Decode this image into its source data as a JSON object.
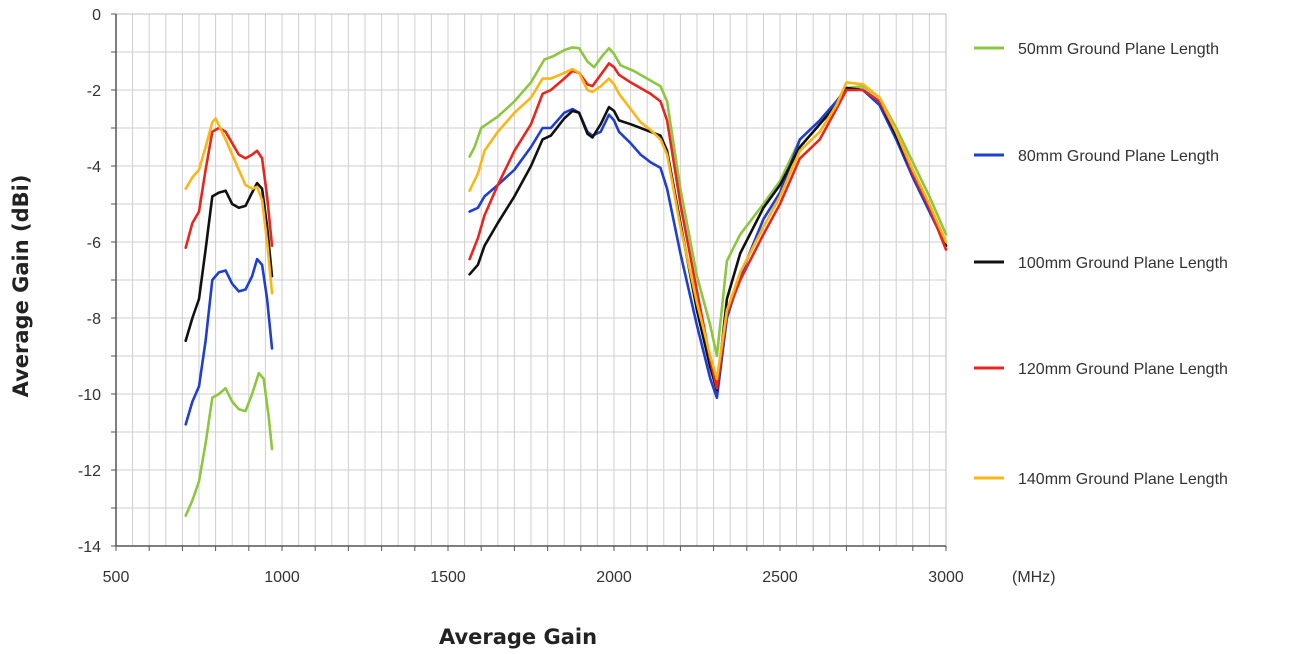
{
  "chart_data": {
    "type": "line",
    "title": "",
    "xlabel": "Average Gain",
    "ylabel": "Average Gain (dBi)",
    "x_unit": "(MHz)",
    "xlim": [
      500,
      3000
    ],
    "ylim": [
      -14,
      0
    ],
    "x_ticks": [
      "500",
      "1000",
      "1500",
      "2000",
      "2500",
      "3000"
    ],
    "y_ticks": [
      "0",
      "-2",
      "-4",
      "-6",
      "-8",
      "-10",
      "-12",
      "-14"
    ],
    "grid": true,
    "legend_position": "right",
    "series": [
      {
        "name": "50mm Ground Plane Length",
        "color": "#8dc63f",
        "segments": [
          [
            [
              710,
              -13.2
            ],
            [
              730,
              -12.8
            ],
            [
              750,
              -12.3
            ],
            [
              770,
              -11.3
            ],
            [
              790,
              -10.1
            ],
            [
              810,
              -10.0
            ],
            [
              830,
              -9.85
            ],
            [
              850,
              -10.2
            ],
            [
              870,
              -10.4
            ],
            [
              890,
              -10.45
            ],
            [
              910,
              -10.0
            ],
            [
              930,
              -9.45
            ],
            [
              945,
              -9.6
            ],
            [
              960,
              -10.6
            ],
            [
              970,
              -11.45
            ]
          ],
          [
            [
              1565,
              -3.75
            ],
            [
              1580,
              -3.5
            ],
            [
              1600,
              -3.0
            ],
            [
              1650,
              -2.7
            ],
            [
              1700,
              -2.3
            ],
            [
              1750,
              -1.8
            ],
            [
              1790,
              -1.2
            ],
            [
              1820,
              -1.1
            ],
            [
              1850,
              -0.95
            ],
            [
              1875,
              -0.88
            ],
            [
              1895,
              -0.9
            ],
            [
              1920,
              -1.25
            ],
            [
              1940,
              -1.4
            ],
            [
              1965,
              -1.1
            ],
            [
              1985,
              -0.9
            ],
            [
              2000,
              -1.05
            ],
            [
              2020,
              -1.35
            ],
            [
              2060,
              -1.5
            ],
            [
              2100,
              -1.7
            ],
            [
              2140,
              -1.9
            ],
            [
              2160,
              -2.3
            ],
            [
              2200,
              -4.6
            ],
            [
              2250,
              -6.9
            ],
            [
              2290,
              -8.2
            ],
            [
              2310,
              -9.0
            ],
            [
              2340,
              -6.5
            ],
            [
              2380,
              -5.8
            ],
            [
              2450,
              -5.0
            ],
            [
              2500,
              -4.4
            ],
            [
              2560,
              -3.3
            ],
            [
              2620,
              -2.8
            ],
            [
              2670,
              -2.3
            ],
            [
              2700,
              -1.95
            ],
            [
              2750,
              -1.9
            ],
            [
              2800,
              -2.2
            ],
            [
              2850,
              -3.0
            ],
            [
              2900,
              -3.9
            ],
            [
              2950,
              -4.8
            ],
            [
              3000,
              -5.8
            ]
          ]
        ]
      },
      {
        "name": "80mm Ground Plane Length",
        "color": "#1f3fd0",
        "segments": [
          [
            [
              710,
              -10.8
            ],
            [
              730,
              -10.2
            ],
            [
              750,
              -9.8
            ],
            [
              770,
              -8.6
            ],
            [
              790,
              -7.0
            ],
            [
              810,
              -6.8
            ],
            [
              830,
              -6.75
            ],
            [
              850,
              -7.1
            ],
            [
              870,
              -7.3
            ],
            [
              890,
              -7.25
            ],
            [
              910,
              -6.9
            ],
            [
              925,
              -6.45
            ],
            [
              940,
              -6.6
            ],
            [
              955,
              -7.5
            ],
            [
              970,
              -8.8
            ]
          ],
          [
            [
              1565,
              -5.2
            ],
            [
              1590,
              -5.1
            ],
            [
              1610,
              -4.8
            ],
            [
              1650,
              -4.5
            ],
            [
              1700,
              -4.1
            ],
            [
              1750,
              -3.5
            ],
            [
              1785,
              -3.0
            ],
            [
              1810,
              -3.0
            ],
            [
              1850,
              -2.6
            ],
            [
              1875,
              -2.5
            ],
            [
              1895,
              -2.6
            ],
            [
              1920,
              -3.1
            ],
            [
              1935,
              -3.2
            ],
            [
              1960,
              -3.1
            ],
            [
              1985,
              -2.65
            ],
            [
              2000,
              -2.8
            ],
            [
              2015,
              -3.1
            ],
            [
              2050,
              -3.4
            ],
            [
              2080,
              -3.7
            ],
            [
              2110,
              -3.9
            ],
            [
              2140,
              -4.05
            ],
            [
              2160,
              -4.6
            ],
            [
              2200,
              -6.3
            ],
            [
              2250,
              -8.2
            ],
            [
              2290,
              -9.6
            ],
            [
              2310,
              -10.1
            ],
            [
              2340,
              -8.0
            ],
            [
              2380,
              -6.9
            ],
            [
              2450,
              -5.4
            ],
            [
              2500,
              -4.7
            ],
            [
              2560,
              -3.3
            ],
            [
              2620,
              -2.8
            ],
            [
              2670,
              -2.3
            ],
            [
              2700,
              -1.95
            ],
            [
              2750,
              -2.0
            ],
            [
              2800,
              -2.4
            ],
            [
              2850,
              -3.3
            ],
            [
              2900,
              -4.3
            ],
            [
              2950,
              -5.2
            ],
            [
              3000,
              -6.1
            ]
          ]
        ]
      },
      {
        "name": "100mm Ground Plane Length",
        "color": "#111111",
        "segments": [
          [
            [
              710,
              -8.6
            ],
            [
              730,
              -8.0
            ],
            [
              750,
              -7.5
            ],
            [
              770,
              -6.2
            ],
            [
              790,
              -4.8
            ],
            [
              810,
              -4.7
            ],
            [
              830,
              -4.65
            ],
            [
              850,
              -5.0
            ],
            [
              870,
              -5.1
            ],
            [
              890,
              -5.05
            ],
            [
              910,
              -4.7
            ],
            [
              925,
              -4.45
            ],
            [
              940,
              -4.6
            ],
            [
              955,
              -5.6
            ],
            [
              970,
              -6.9
            ]
          ],
          [
            [
              1565,
              -6.85
            ],
            [
              1590,
              -6.6
            ],
            [
              1610,
              -6.1
            ],
            [
              1650,
              -5.5
            ],
            [
              1700,
              -4.8
            ],
            [
              1750,
              -4.0
            ],
            [
              1785,
              -3.3
            ],
            [
              1810,
              -3.2
            ],
            [
              1850,
              -2.75
            ],
            [
              1875,
              -2.55
            ],
            [
              1895,
              -2.6
            ],
            [
              1920,
              -3.15
            ],
            [
              1935,
              -3.25
            ],
            [
              1960,
              -2.9
            ],
            [
              1985,
              -2.45
            ],
            [
              2000,
              -2.55
            ],
            [
              2015,
              -2.8
            ],
            [
              2050,
              -2.9
            ],
            [
              2080,
              -3.0
            ],
            [
              2110,
              -3.1
            ],
            [
              2140,
              -3.2
            ],
            [
              2160,
              -3.6
            ],
            [
              2200,
              -5.5
            ],
            [
              2250,
              -7.8
            ],
            [
              2290,
              -9.3
            ],
            [
              2310,
              -9.9
            ],
            [
              2340,
              -7.5
            ],
            [
              2380,
              -6.3
            ],
            [
              2450,
              -5.1
            ],
            [
              2500,
              -4.5
            ],
            [
              2560,
              -3.5
            ],
            [
              2620,
              -2.9
            ],
            [
              2670,
              -2.4
            ],
            [
              2700,
              -1.95
            ],
            [
              2750,
              -2.0
            ],
            [
              2800,
              -2.3
            ],
            [
              2850,
              -3.2
            ],
            [
              2900,
              -4.2
            ],
            [
              2950,
              -5.1
            ],
            [
              3000,
              -6.1
            ]
          ]
        ]
      },
      {
        "name": "120mm Ground Plane Length",
        "color": "#e8261e",
        "segments": [
          [
            [
              710,
              -6.15
            ],
            [
              730,
              -5.5
            ],
            [
              750,
              -5.2
            ],
            [
              770,
              -4.1
            ],
            [
              790,
              -3.1
            ],
            [
              810,
              -3.0
            ],
            [
              830,
              -3.1
            ],
            [
              850,
              -3.4
            ],
            [
              870,
              -3.7
            ],
            [
              890,
              -3.8
            ],
            [
              910,
              -3.7
            ],
            [
              925,
              -3.6
            ],
            [
              940,
              -3.8
            ],
            [
              955,
              -4.8
            ],
            [
              970,
              -6.1
            ]
          ],
          [
            [
              1565,
              -6.45
            ],
            [
              1590,
              -5.9
            ],
            [
              1610,
              -5.3
            ],
            [
              1650,
              -4.5
            ],
            [
              1700,
              -3.6
            ],
            [
              1750,
              -2.9
            ],
            [
              1785,
              -2.1
            ],
            [
              1810,
              -2.0
            ],
            [
              1850,
              -1.7
            ],
            [
              1875,
              -1.5
            ],
            [
              1895,
              -1.55
            ],
            [
              1920,
              -1.85
            ],
            [
              1935,
              -1.9
            ],
            [
              1960,
              -1.6
            ],
            [
              1985,
              -1.3
            ],
            [
              2000,
              -1.4
            ],
            [
              2015,
              -1.6
            ],
            [
              2050,
              -1.8
            ],
            [
              2080,
              -1.95
            ],
            [
              2110,
              -2.1
            ],
            [
              2140,
              -2.3
            ],
            [
              2160,
              -2.8
            ],
            [
              2200,
              -5.0
            ],
            [
              2250,
              -7.3
            ],
            [
              2290,
              -9.1
            ],
            [
              2310,
              -9.85
            ],
            [
              2340,
              -7.9
            ],
            [
              2380,
              -7.0
            ],
            [
              2450,
              -5.8
            ],
            [
              2500,
              -5.0
            ],
            [
              2560,
              -3.8
            ],
            [
              2620,
              -3.3
            ],
            [
              2670,
              -2.5
            ],
            [
              2700,
              -2.0
            ],
            [
              2750,
              -2.0
            ],
            [
              2800,
              -2.3
            ],
            [
              2850,
              -3.1
            ],
            [
              2900,
              -4.2
            ],
            [
              2950,
              -5.1
            ],
            [
              3000,
              -6.2
            ]
          ]
        ]
      },
      {
        "name": "140mm Ground Plane Length",
        "color": "#fbb615",
        "segments": [
          [
            [
              710,
              -4.6
            ],
            [
              730,
              -4.3
            ],
            [
              750,
              -4.1
            ],
            [
              770,
              -3.5
            ],
            [
              790,
              -2.85
            ],
            [
              800,
              -2.75
            ],
            [
              830,
              -3.3
            ],
            [
              850,
              -3.7
            ],
            [
              870,
              -4.1
            ],
            [
              890,
              -4.5
            ],
            [
              910,
              -4.6
            ],
            [
              925,
              -4.55
            ],
            [
              940,
              -4.9
            ],
            [
              955,
              -6.0
            ],
            [
              970,
              -7.35
            ]
          ],
          [
            [
              1565,
              -4.65
            ],
            [
              1590,
              -4.2
            ],
            [
              1610,
              -3.6
            ],
            [
              1650,
              -3.1
            ],
            [
              1700,
              -2.6
            ],
            [
              1750,
              -2.2
            ],
            [
              1785,
              -1.7
            ],
            [
              1810,
              -1.7
            ],
            [
              1850,
              -1.55
            ],
            [
              1875,
              -1.45
            ],
            [
              1895,
              -1.55
            ],
            [
              1920,
              -2.0
            ],
            [
              1935,
              -2.05
            ],
            [
              1960,
              -1.9
            ],
            [
              1985,
              -1.7
            ],
            [
              2000,
              -1.85
            ],
            [
              2015,
              -2.1
            ],
            [
              2050,
              -2.5
            ],
            [
              2080,
              -2.85
            ],
            [
              2110,
              -3.05
            ],
            [
              2140,
              -3.3
            ],
            [
              2160,
              -3.7
            ],
            [
              2200,
              -5.6
            ],
            [
              2250,
              -7.6
            ],
            [
              2290,
              -9.0
            ],
            [
              2310,
              -9.6
            ],
            [
              2340,
              -7.8
            ],
            [
              2380,
              -6.8
            ],
            [
              2450,
              -5.6
            ],
            [
              2500,
              -4.8
            ],
            [
              2560,
              -3.6
            ],
            [
              2620,
              -3.1
            ],
            [
              2670,
              -2.4
            ],
            [
              2700,
              -1.8
            ],
            [
              2750,
              -1.85
            ],
            [
              2800,
              -2.2
            ],
            [
              2850,
              -3.1
            ],
            [
              2900,
              -4.1
            ],
            [
              2950,
              -5.0
            ],
            [
              3000,
              -6.0
            ]
          ]
        ]
      }
    ]
  }
}
